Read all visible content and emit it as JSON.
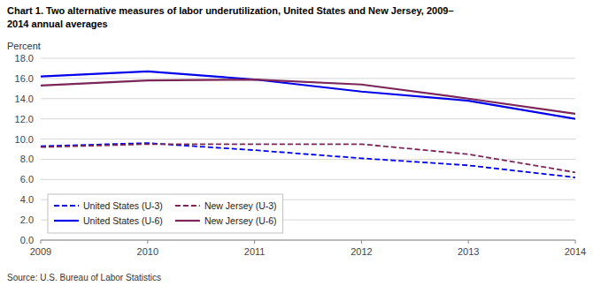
{
  "chart_data": {
    "type": "line",
    "title": "Chart 1. Two alternative measures of labor underutilization, United States and New Jersey, 2009–",
    "subtitle": "2014 annual averages",
    "y_label": "Percent",
    "source": "Source: U.S. Bureau of Labor Statistics",
    "x": [
      2009,
      2010,
      2011,
      2012,
      2013,
      2014
    ],
    "xlim": [
      2009,
      2014
    ],
    "xticks": [
      2009,
      2010,
      2011,
      2012,
      2013,
      2014
    ],
    "ylim": [
      0.0,
      18.0
    ],
    "yticks": [
      {
        "value": 0,
        "label": "0.0"
      },
      {
        "value": 2,
        "label": "2.0"
      },
      {
        "value": 4,
        "label": "4.0"
      },
      {
        "value": 6,
        "label": "6.0"
      },
      {
        "value": 8,
        "label": "8.0"
      },
      {
        "value": 10,
        "label": "10.0"
      },
      {
        "value": 12,
        "label": "12.0"
      },
      {
        "value": 14,
        "label": "14.0"
      },
      {
        "value": 16,
        "label": "16.0"
      },
      {
        "value": 18,
        "label": "18.0"
      }
    ],
    "grid": "y",
    "legend": "lower left",
    "series": [
      {
        "name": "United States (U-3)",
        "color": "#0000EE",
        "line_style": "dashed",
        "values": [
          9.3,
          9.6,
          8.9,
          8.1,
          7.4,
          6.2
        ]
      },
      {
        "name": "New Jersey (U-3)",
        "color": "#7B2558",
        "line_style": "dashed",
        "values": [
          9.2,
          9.5,
          9.5,
          9.5,
          8.5,
          6.7
        ]
      },
      {
        "name": "United States (U-6)",
        "color": "#0000EE",
        "line_style": "solid",
        "values": [
          16.2,
          16.7,
          15.9,
          14.7,
          13.8,
          12.0
        ]
      },
      {
        "name": "New Jersey (U-6)",
        "color": "#7B2558",
        "line_style": "solid",
        "values": [
          15.3,
          15.8,
          15.9,
          15.4,
          14.0,
          12.5
        ]
      }
    ]
  }
}
